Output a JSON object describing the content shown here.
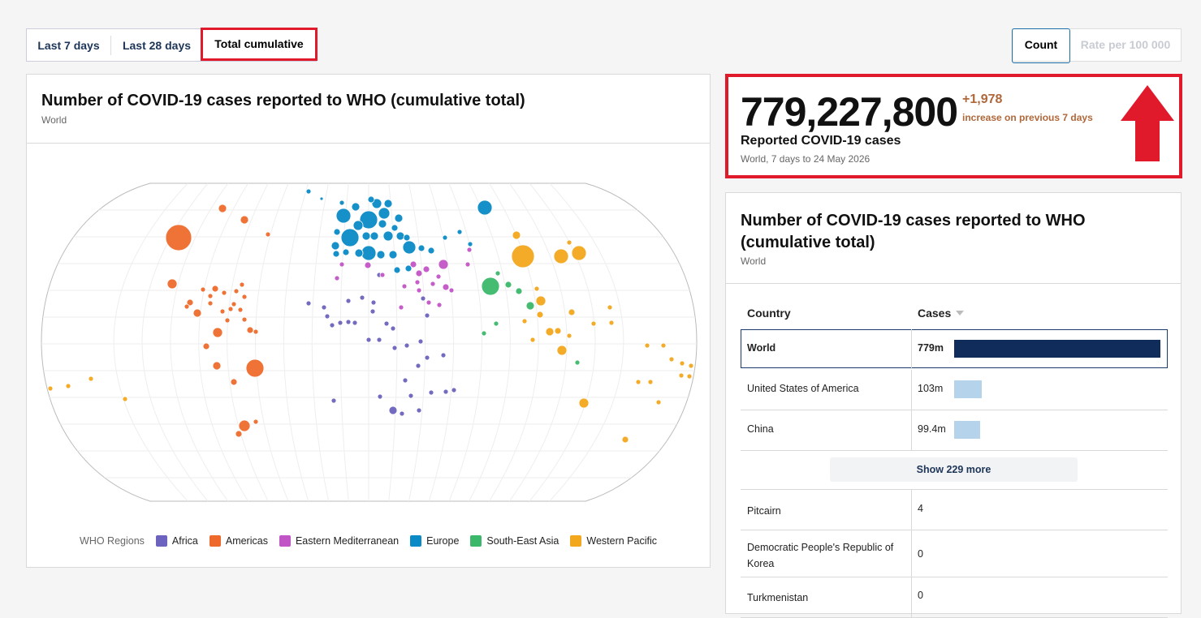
{
  "tabs": [
    "Last 7 days",
    "Last 28 days",
    "Total cumulative"
  ],
  "measure_toggle": [
    "Count",
    "Rate per 100 000"
  ],
  "map_card": {
    "title": "Number of COVID-19 cases reported to WHO (cumulative total)",
    "subtitle": "World",
    "legend_title": "WHO Regions",
    "regions": [
      {
        "name": "Africa",
        "color": "#6b63bd"
      },
      {
        "name": "Americas",
        "color": "#ee6a2c"
      },
      {
        "name": "Eastern Mediterranean",
        "color": "#c255c5"
      },
      {
        "name": "Europe",
        "color": "#0a8ac6"
      },
      {
        "name": "South-East Asia",
        "color": "#3bb86a"
      },
      {
        "name": "Western Pacific",
        "color": "#f2a71c"
      }
    ]
  },
  "summary": {
    "value": "779,227,800",
    "change": "+1,978",
    "change_label": "increase on previous 7 days",
    "label": "Reported COVID-19 cases",
    "caption": "World, 7 days to 24 May 2026"
  },
  "table": {
    "title": "Number of COVID-19 cases reported to WHO (cumulative total)",
    "subtitle": "World",
    "columns": [
      "Country",
      "Cases"
    ],
    "rows": [
      {
        "country": "World",
        "cases": {
          "value": 779000000,
          "label": "779m"
        }
      },
      {
        "country": "United States of America",
        "cases": {
          "value": 103000000,
          "label": "103m"
        }
      },
      {
        "country": "China",
        "cases": {
          "value": 99400000,
          "label": "99.4m"
        }
      }
    ],
    "show_more": "Show 229 more",
    "more_rows": [
      {
        "country": "Pitcairn",
        "cases": 4
      },
      {
        "country": "Democratic People's Republic of Korea",
        "cases": 0
      },
      {
        "country": "Turkmenistan",
        "cases": 0
      }
    ]
  }
}
